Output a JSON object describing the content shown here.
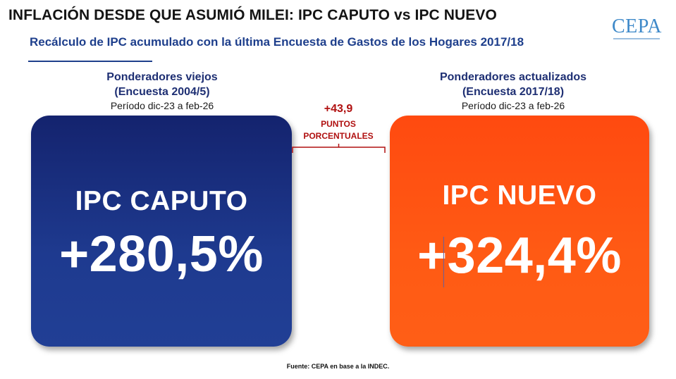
{
  "header": {
    "title": "INFLACIÓN DESDE QUE ASUMIÓ MILEI: IPC CAPUTO vs IPC NUEVO",
    "subtitle": "Recálculo de IPC acumulado con la última Encuesta de Gastos de los Hogares 2017/18"
  },
  "logo": {
    "text": "CEPA"
  },
  "left": {
    "heading_line1": "Ponderadores viejos",
    "heading_line2": "(Encuesta 2004/5)",
    "period": "Período dic-23 a feb-26",
    "label": "IPC CAPUTO",
    "value": "+280,5%"
  },
  "right": {
    "heading_line1": "Ponderadores actualizados",
    "heading_line2": "(Encuesta 2017/18)",
    "period": "Período dic-23 a feb-26",
    "label": "IPC NUEVO",
    "value": "+324,4%"
  },
  "difference": {
    "value": "+43,9",
    "label_line1": "PUNTOS",
    "label_line2": "PORCENTUALES"
  },
  "footer": {
    "source": "Fuente: CEPA en base a la INDEC."
  },
  "colors": {
    "navy": "#1e3a8f",
    "orange": "#ff5a14",
    "accent_red": "#b01010",
    "subtitle_blue": "#1e3f8c"
  }
}
